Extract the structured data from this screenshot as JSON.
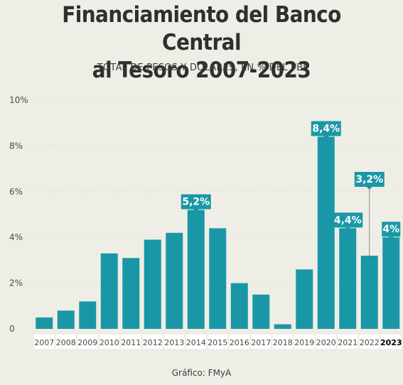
{
  "title_line1": "Financiamiento del Banco Central",
  "title_line2": "al Tesoro 2007-2023",
  "subtitle": "TOTAL DE PESOS Y DÓLARES, EN % DEL PBI",
  "source": "Gráfico: FMyA",
  "colors": {
    "bar": "#1a97a7",
    "label_bg": "#1a97a7",
    "label_text": "#ffffff",
    "grid": "#c9c9c0",
    "tick_text": "#4a4a4a",
    "highlight_tick": "#000000"
  },
  "chart_data": {
    "type": "bar",
    "title": "Financiamiento del Banco Central al Tesoro 2007-2023",
    "subtitle": "TOTAL DE PESOS Y DÓLARES, EN % DEL PBI",
    "categories": [
      "2007",
      "2008",
      "2009",
      "2010",
      "2011",
      "2012",
      "2013",
      "2014",
      "2015",
      "2016",
      "2017",
      "2018",
      "2019",
      "2020",
      "2021",
      "2022",
      "2023"
    ],
    "values": [
      0.5,
      0.8,
      1.2,
      3.3,
      3.1,
      3.9,
      4.2,
      5.2,
      4.4,
      2.0,
      1.5,
      0.2,
      2.6,
      8.4,
      4.4,
      3.2,
      4.0
    ],
    "ylim": [
      0,
      10
    ],
    "yticks": [
      "0",
      "2%",
      "4%",
      "6%",
      "8%",
      "10%"
    ],
    "ytick_values": [
      0,
      2,
      4,
      6,
      8,
      10
    ],
    "grid": true,
    "highlighted_category": "2023",
    "data_labels": [
      {
        "category": "2014",
        "text": "5,2%"
      },
      {
        "category": "2020",
        "text": "8,4%"
      },
      {
        "category": "2021",
        "text": "4,4%"
      },
      {
        "category": "2022",
        "text": "3,2%"
      },
      {
        "category": "2023",
        "text": "4%"
      }
    ]
  }
}
